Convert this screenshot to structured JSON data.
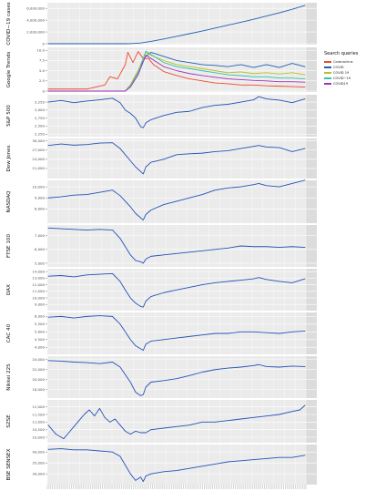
{
  "chart_data": {
    "type": "line",
    "title": "",
    "legend_title": "Search queries",
    "legend_position": "right",
    "grid": true,
    "panels": [
      {
        "ylabel": "COVID−19 cases",
        "yticks": [
          "0",
          "2,000,000",
          "4,000,000",
          "6,000,000"
        ],
        "ylim": [
          0,
          6800000
        ],
        "series": [
          {
            "color": "#1f5fb3",
            "x": [
              0,
              0.15,
              0.3,
              0.32,
              0.36,
              0.4,
              0.45,
              0.5,
              0.55,
              0.6,
              0.65,
              0.7,
              0.75,
              0.8,
              0.85,
              0.9,
              0.95,
              1.0
            ],
            "y": [
              0,
              0,
              0,
              15000,
              120000,
              400000,
              800000,
              1250000,
              1700000,
              2150000,
              2650000,
              3150000,
              3650000,
              4150000,
              4700000,
              5250000,
              5850000,
              6500000
            ]
          }
        ]
      },
      {
        "ylabel": "Google Trends",
        "yticks": [
          "0",
          "2.5",
          "5.0",
          "7.5",
          "10.0"
        ],
        "ylim": [
          0,
          10.5
        ],
        "series": [
          {
            "name": "Coronavirus",
            "color": "#f0492a",
            "x": [
              0,
              0.15,
              0.22,
              0.24,
              0.27,
              0.3,
              0.31,
              0.33,
              0.35,
              0.37,
              0.39,
              0.41,
              0.45,
              0.5,
              0.55,
              0.6,
              0.65,
              0.7,
              0.75,
              0.8,
              0.85,
              0.9,
              0.95,
              1.0
            ],
            "y": [
              0.5,
              0.5,
              1.5,
              3.5,
              3.0,
              6.5,
              9.5,
              7.0,
              9.7,
              8.0,
              8.0,
              6.5,
              4.8,
              3.8,
              3.0,
              2.5,
              2.0,
              1.8,
              1.5,
              1.5,
              1.3,
              1.2,
              1.1,
              1.0
            ]
          },
          {
            "name": "COVID",
            "color": "#1f5fb3",
            "x": [
              0,
              0.3,
              0.32,
              0.35,
              0.38,
              0.4,
              0.45,
              0.5,
              0.55,
              0.6,
              0.65,
              0.7,
              0.75,
              0.8,
              0.85,
              0.9,
              0.95,
              1.0
            ],
            "y": [
              0,
              0,
              1.5,
              5.0,
              8.5,
              9.5,
              8.5,
              7.5,
              7.0,
              6.5,
              6.3,
              6.0,
              6.5,
              5.8,
              6.5,
              5.8,
              6.8,
              6.0
            ]
          },
          {
            "name": "COVID 19",
            "color": "#b6c322",
            "x": [
              0,
              0.3,
              0.32,
              0.35,
              0.38,
              0.4,
              0.45,
              0.5,
              0.55,
              0.6,
              0.65,
              0.7,
              0.75,
              0.8,
              0.85,
              0.9,
              0.95,
              1.0
            ],
            "y": [
              0,
              0,
              1.5,
              5.0,
              9.5,
              8.8,
              7.5,
              6.5,
              6.0,
              5.5,
              5.0,
              4.5,
              4.7,
              4.3,
              4.5,
              4.2,
              4.5,
              4.0
            ]
          },
          {
            "name": "COVID−19",
            "color": "#35c2a8",
            "x": [
              0,
              0.3,
              0.32,
              0.35,
              0.38,
              0.4,
              0.45,
              0.5,
              0.55,
              0.6,
              0.65,
              0.7,
              0.75,
              0.8,
              0.85,
              0.9,
              0.95,
              1.0
            ],
            "y": [
              0,
              0,
              1.2,
              4.5,
              9.8,
              9.0,
              7.0,
              6.0,
              5.5,
              5.0,
              4.5,
              4.0,
              3.8,
              3.5,
              3.5,
              3.2,
              3.2,
              3.0
            ]
          },
          {
            "name": "COVID19",
            "color": "#a331b8",
            "x": [
              0,
              0.3,
              0.32,
              0.35,
              0.38,
              0.4,
              0.45,
              0.5,
              0.55,
              0.6,
              0.65,
              0.7,
              0.75,
              0.8,
              0.85,
              0.9,
              0.95,
              1.0
            ],
            "y": [
              0,
              0,
              1.0,
              4.0,
              8.8,
              8.0,
              6.0,
              5.0,
              4.3,
              3.8,
              3.4,
              3.0,
              2.8,
              2.6,
              2.5,
              2.3,
              2.3,
              2.2
            ]
          }
        ]
      },
      {
        "ylabel": "S&P 500",
        "yticks": [
          "2,250",
          "2,500",
          "2,750",
          "3,000",
          "3,250"
        ],
        "ylim": [
          2200,
          3450
        ],
        "series": [
          {
            "color": "#2452b8",
            "x": [
              0,
              0.05,
              0.1,
              0.15,
              0.2,
              0.25,
              0.28,
              0.3,
              0.32,
              0.34,
              0.36,
              0.37,
              0.38,
              0.4,
              0.45,
              0.5,
              0.55,
              0.6,
              0.65,
              0.7,
              0.75,
              0.8,
              0.82,
              0.85,
              0.9,
              0.95,
              1.0
            ],
            "y": [
              3250,
              3300,
              3230,
              3280,
              3320,
              3370,
              3230,
              3000,
              2900,
              2750,
              2480,
              2450,
              2600,
              2700,
              2830,
              2930,
              2960,
              3080,
              3150,
              3180,
              3250,
              3320,
              3420,
              3350,
              3310,
              3230,
              3350
            ]
          }
        ]
      },
      {
        "ylabel": "Dow Jones",
        "yticks": [
          "21,000",
          "24,000",
          "27,000",
          "30,000"
        ],
        "ylim": [
          18000,
          30500
        ],
        "series": [
          {
            "color": "#2452b8",
            "x": [
              0,
              0.05,
              0.1,
              0.15,
              0.2,
              0.25,
              0.28,
              0.3,
              0.32,
              0.34,
              0.36,
              0.37,
              0.38,
              0.4,
              0.45,
              0.5,
              0.55,
              0.6,
              0.65,
              0.7,
              0.75,
              0.8,
              0.82,
              0.85,
              0.9,
              0.95,
              1.0
            ],
            "y": [
              28500,
              29000,
              28600,
              28800,
              29300,
              29400,
              27500,
              25500,
              23500,
              21500,
              20000,
              19200,
              21500,
              23000,
              24000,
              25500,
              25800,
              26000,
              26500,
              26800,
              27500,
              28200,
              28500,
              28000,
              27800,
              26500,
              27500
            ]
          }
        ]
      },
      {
        "ylabel": "NASDAQ",
        "yticks": [
          "8,000",
          "9,000",
          "10,000"
        ],
        "ylim": [
          6800,
          10500
        ],
        "series": [
          {
            "color": "#2452b8",
            "x": [
              0,
              0.05,
              0.1,
              0.15,
              0.2,
              0.25,
              0.28,
              0.3,
              0.32,
              0.34,
              0.36,
              0.37,
              0.38,
              0.4,
              0.45,
              0.5,
              0.55,
              0.6,
              0.65,
              0.7,
              0.75,
              0.8,
              0.82,
              0.85,
              0.9,
              0.95,
              1.0
            ],
            "y": [
              9000,
              9100,
              9250,
              9300,
              9500,
              9700,
              9200,
              8700,
              8200,
              7600,
              7200,
              7000,
              7500,
              7900,
              8400,
              8700,
              9000,
              9300,
              9700,
              9900,
              10000,
              10200,
              10300,
              10100,
              10000,
              10300,
              10600
            ]
          }
        ]
      },
      {
        "ylabel": "FTSE 100",
        "yticks": [
          "5,000",
          "6,000",
          "7,000"
        ],
        "ylim": [
          4800,
          7700
        ],
        "series": [
          {
            "color": "#2452b8",
            "x": [
              0,
              0.05,
              0.1,
              0.15,
              0.2,
              0.25,
              0.28,
              0.3,
              0.32,
              0.34,
              0.36,
              0.37,
              0.38,
              0.4,
              0.45,
              0.5,
              0.55,
              0.6,
              0.65,
              0.7,
              0.75,
              0.8,
              0.85,
              0.9,
              0.95,
              1.0
            ],
            "y": [
              7550,
              7500,
              7450,
              7400,
              7450,
              7400,
              6800,
              6200,
              5600,
              5200,
              5100,
              5000,
              5300,
              5500,
              5600,
              5700,
              5800,
              5900,
              6000,
              6100,
              6250,
              6200,
              6200,
              6150,
              6200,
              6150
            ]
          }
        ]
      },
      {
        "ylabel": "DAX",
        "yticks": [
          "9,000",
          "10,000",
          "11,000",
          "12,000",
          "13,000",
          "14,000"
        ],
        "ylim": [
          8200,
          14300
        ],
        "series": [
          {
            "color": "#2452b8",
            "x": [
              0,
              0.05,
              0.1,
              0.15,
              0.2,
              0.25,
              0.28,
              0.3,
              0.32,
              0.34,
              0.36,
              0.37,
              0.38,
              0.4,
              0.45,
              0.5,
              0.55,
              0.6,
              0.65,
              0.7,
              0.75,
              0.8,
              0.82,
              0.85,
              0.9,
              0.95,
              1.0
            ],
            "y": [
              13300,
              13400,
              13200,
              13500,
              13600,
              13700,
              12500,
              11200,
              10000,
              9200,
              8700,
              8600,
              9500,
              10200,
              10800,
              11200,
              11600,
              12000,
              12300,
              12500,
              12700,
              12900,
              13100,
              12800,
              12500,
              12300,
              12900
            ]
          }
        ]
      },
      {
        "ylabel": "CAC 40",
        "yticks": [
          "4,000",
          "4,500",
          "5,000",
          "5,500",
          "6,000"
        ],
        "ylim": [
          3600,
          6200
        ],
        "series": [
          {
            "color": "#2452b8",
            "x": [
              0,
              0.05,
              0.1,
              0.15,
              0.2,
              0.25,
              0.28,
              0.3,
              0.32,
              0.34,
              0.36,
              0.37,
              0.38,
              0.4,
              0.45,
              0.5,
              0.55,
              0.6,
              0.65,
              0.7,
              0.75,
              0.8,
              0.85,
              0.9,
              0.95,
              1.0
            ],
            "y": [
              5950,
              6000,
              5900,
              6000,
              6050,
              6000,
              5500,
              5000,
              4500,
              4100,
              3900,
              3800,
              4200,
              4400,
              4500,
              4600,
              4700,
              4800,
              4900,
              4900,
              5000,
              5000,
              4950,
              4900,
              5000,
              5050
            ]
          }
        ]
      },
      {
        "ylabel": "Nikkei 225",
        "yticks": [
          "18,000",
          "20,000",
          "22,000",
          "24,000"
        ],
        "ylim": [
          16500,
          24500
        ],
        "series": [
          {
            "color": "#2452b8",
            "x": [
              0,
              0.05,
              0.1,
              0.15,
              0.2,
              0.25,
              0.28,
              0.3,
              0.32,
              0.34,
              0.36,
              0.37,
              0.38,
              0.4,
              0.45,
              0.5,
              0.55,
              0.6,
              0.65,
              0.7,
              0.75,
              0.8,
              0.82,
              0.85,
              0.9,
              0.95,
              1.0
            ],
            "y": [
              23800,
              23700,
              23500,
              23400,
              23200,
              23500,
              22500,
              21000,
              19500,
              17500,
              16800,
              17000,
              18500,
              19500,
              19800,
              20200,
              20800,
              21500,
              22000,
              22300,
              22500,
              22800,
              23000,
              22600,
              22500,
              22700,
              22600
            ]
          }
        ]
      },
      {
        "ylabel": "SZSE",
        "yticks": [
          "10,000",
          "10,500",
          "11,000",
          "11,500",
          "12,000"
        ],
        "ylim": [
          9700,
          12400
        ],
        "series": [
          {
            "color": "#2452b8",
            "x": [
              0,
              0.03,
              0.06,
              0.08,
              0.1,
              0.12,
              0.14,
              0.16,
              0.18,
              0.2,
              0.22,
              0.24,
              0.26,
              0.28,
              0.3,
              0.32,
              0.34,
              0.36,
              0.38,
              0.4,
              0.45,
              0.5,
              0.55,
              0.6,
              0.65,
              0.7,
              0.75,
              0.8,
              0.85,
              0.9,
              0.95,
              0.98,
              1.0
            ],
            "y": [
              10800,
              10200,
              9900,
              10300,
              10700,
              11100,
              11500,
              11800,
              11400,
              11900,
              11300,
              11000,
              11200,
              10800,
              10400,
              10200,
              10400,
              10300,
              10300,
              10500,
              10600,
              10700,
              10800,
              11000,
              11000,
              11100,
              11200,
              11300,
              11400,
              11500,
              11700,
              11800,
              12100
            ]
          }
        ]
      },
      {
        "ylabel": "BSE SENSEX",
        "yticks": [
          "30,000",
          "35,000",
          "40,000"
        ],
        "ylim": [
          25500,
          43000
        ],
        "series": [
          {
            "color": "#2452b8",
            "x": [
              0,
              0.05,
              0.1,
              0.15,
              0.2,
              0.25,
              0.28,
              0.3,
              0.32,
              0.34,
              0.36,
              0.37,
              0.38,
              0.4,
              0.45,
              0.5,
              0.55,
              0.6,
              0.65,
              0.7,
              0.75,
              0.8,
              0.85,
              0.9,
              0.95,
              1.0
            ],
            "y": [
              41200,
              41500,
              41000,
              41000,
              40500,
              40000,
              38000,
              34000,
              30000,
              27000,
              28500,
              26500,
              29000,
              30000,
              31000,
              31500,
              32500,
              33500,
              34500,
              35500,
              36000,
              36500,
              37000,
              37500,
              37500,
              38500
            ]
          }
        ]
      }
    ]
  }
}
